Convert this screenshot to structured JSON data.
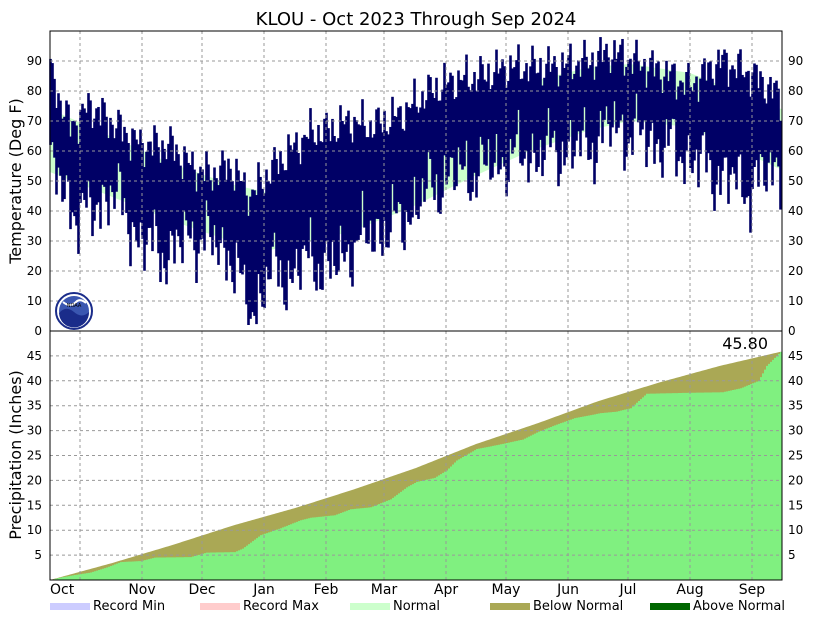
{
  "title": "KLOU - Oct 2023 Through Sep 2024",
  "colors": {
    "temp_bars": "#000066",
    "normal_band": "#ccffcc",
    "precip_actual": "#80f080",
    "below_normal": "#aaa855",
    "above_normal": "#006600",
    "record_min": "#ccccff",
    "record_max": "#ffcccc",
    "grid": "#999999"
  },
  "icon": "noaa-logo-icon",
  "chart_data": [
    {
      "type": "bar",
      "name": "temperature",
      "ylabel": "Temperature (Deg F)",
      "ylim": [
        0,
        100
      ],
      "yticks": [
        0,
        10,
        20,
        30,
        40,
        50,
        60,
        70,
        80,
        90
      ],
      "grid": true,
      "months": [
        "Oct",
        "Nov",
        "Dec",
        "Jan",
        "Feb",
        "Mar",
        "Apr",
        "May",
        "Jun",
        "Jul",
        "Aug",
        "Sep"
      ],
      "daily_high_keypoints": [
        [
          0,
          86
        ],
        [
          10,
          68
        ],
        [
          20,
          75
        ],
        [
          30,
          70
        ],
        [
          45,
          62
        ],
        [
          60,
          62
        ],
        [
          70,
          55
        ],
        [
          80,
          52
        ],
        [
          90,
          55
        ],
        [
          100,
          45
        ],
        [
          112,
          55
        ],
        [
          120,
          60
        ],
        [
          130,
          66
        ],
        [
          140,
          67
        ],
        [
          150,
          70
        ],
        [
          160,
          68
        ],
        [
          175,
          72
        ],
        [
          190,
          80
        ],
        [
          200,
          83
        ],
        [
          215,
          85
        ],
        [
          230,
          88
        ],
        [
          250,
          88
        ],
        [
          270,
          90
        ],
        [
          280,
          93
        ],
        [
          300,
          88
        ],
        [
          320,
          82
        ],
        [
          335,
          90
        ],
        [
          350,
          86
        ],
        [
          365,
          78
        ]
      ],
      "daily_low_keypoints": [
        [
          0,
          55
        ],
        [
          10,
          42
        ],
        [
          20,
          38
        ],
        [
          30,
          48
        ],
        [
          45,
          30
        ],
        [
          60,
          26
        ],
        [
          70,
          32
        ],
        [
          80,
          30
        ],
        [
          90,
          26
        ],
        [
          100,
          5
        ],
        [
          110,
          20
        ],
        [
          120,
          18
        ],
        [
          130,
          25
        ],
        [
          140,
          20
        ],
        [
          150,
          28
        ],
        [
          160,
          32
        ],
        [
          175,
          36
        ],
        [
          190,
          48
        ],
        [
          200,
          52
        ],
        [
          215,
          54
        ],
        [
          230,
          58
        ],
        [
          250,
          60
        ],
        [
          270,
          62
        ],
        [
          280,
          68
        ],
        [
          300,
          64
        ],
        [
          320,
          58
        ],
        [
          335,
          52
        ],
        [
          350,
          48
        ],
        [
          365,
          56
        ]
      ],
      "normal_band": {
        "upper_keypoints": [
          [
            0,
            74
          ],
          [
            60,
            56
          ],
          [
            90,
            49
          ],
          [
            110,
            46
          ],
          [
            150,
            55
          ],
          [
            180,
            64
          ],
          [
            210,
            75
          ],
          [
            240,
            83
          ],
          [
            270,
            88
          ],
          [
            290,
            89
          ],
          [
            320,
            86
          ],
          [
            365,
            74
          ]
        ],
        "lower_keypoints": [
          [
            0,
            53
          ],
          [
            60,
            37
          ],
          [
            90,
            30
          ],
          [
            110,
            27
          ],
          [
            150,
            33
          ],
          [
            180,
            41
          ],
          [
            210,
            51
          ],
          [
            240,
            60
          ],
          [
            270,
            67
          ],
          [
            290,
            70
          ],
          [
            320,
            68
          ],
          [
            365,
            54
          ]
        ]
      }
    },
    {
      "type": "area",
      "name": "precipitation",
      "ylabel": "Precipitation (Inches)",
      "ylim": [
        0,
        50
      ],
      "yticks": [
        5,
        10,
        15,
        20,
        25,
        30,
        35,
        40,
        45
      ],
      "grid": true,
      "months": [
        "Oct",
        "Nov",
        "Dec",
        "Jan",
        "Feb",
        "Mar",
        "Apr",
        "May",
        "Jun",
        "Jul",
        "Aug",
        "Sep"
      ],
      "annotation": "45.80",
      "normal_cumulative": [
        [
          0,
          0
        ],
        [
          31,
          3.4
        ],
        [
          61,
          7.0
        ],
        [
          92,
          11.0
        ],
        [
          123,
          14.5
        ],
        [
          152,
          18.2
        ],
        [
          183,
          22.5
        ],
        [
          213,
          27.3
        ],
        [
          244,
          31.5
        ],
        [
          274,
          35.9
        ],
        [
          305,
          39.7
        ],
        [
          335,
          43.0
        ],
        [
          365,
          45.8
        ]
      ],
      "actual_cumulative": [
        [
          0,
          0
        ],
        [
          5,
          0.5
        ],
        [
          12,
          1.0
        ],
        [
          20,
          1.5
        ],
        [
          28,
          2.5
        ],
        [
          35,
          3.6
        ],
        [
          45,
          3.8
        ],
        [
          52,
          4.5
        ],
        [
          70,
          4.6
        ],
        [
          78,
          5.5
        ],
        [
          92,
          5.6
        ],
        [
          96,
          6.3
        ],
        [
          105,
          9.0
        ],
        [
          115,
          10.4
        ],
        [
          125,
          12.0
        ],
        [
          130,
          12.5
        ],
        [
          142,
          13.0
        ],
        [
          150,
          14.2
        ],
        [
          160,
          14.6
        ],
        [
          170,
          16.2
        ],
        [
          178,
          18.6
        ],
        [
          183,
          19.7
        ],
        [
          192,
          20.5
        ],
        [
          198,
          22.0
        ],
        [
          203,
          24.0
        ],
        [
          213,
          26.3
        ],
        [
          222,
          27.0
        ],
        [
          228,
          27.5
        ],
        [
          236,
          28.2
        ],
        [
          244,
          29.8
        ],
        [
          253,
          31.2
        ],
        [
          262,
          32.5
        ],
        [
          275,
          33.5
        ],
        [
          283,
          33.8
        ],
        [
          290,
          34.5
        ],
        [
          298,
          37.4
        ],
        [
          320,
          37.6
        ],
        [
          336,
          37.7
        ],
        [
          345,
          38.5
        ],
        [
          354,
          40.0
        ],
        [
          358,
          43.0
        ],
        [
          363,
          45.0
        ],
        [
          365,
          45.8
        ]
      ]
    }
  ],
  "legend": [
    {
      "label": "Record Min",
      "color_key": "record_min"
    },
    {
      "label": "Record Max",
      "color_key": "record_max"
    },
    {
      "label": "Normal",
      "color_key": "normal_band"
    },
    {
      "label": "Below Normal",
      "color_key": "below_normal"
    },
    {
      "label": "Above Normal",
      "color_key": "above_normal"
    }
  ]
}
